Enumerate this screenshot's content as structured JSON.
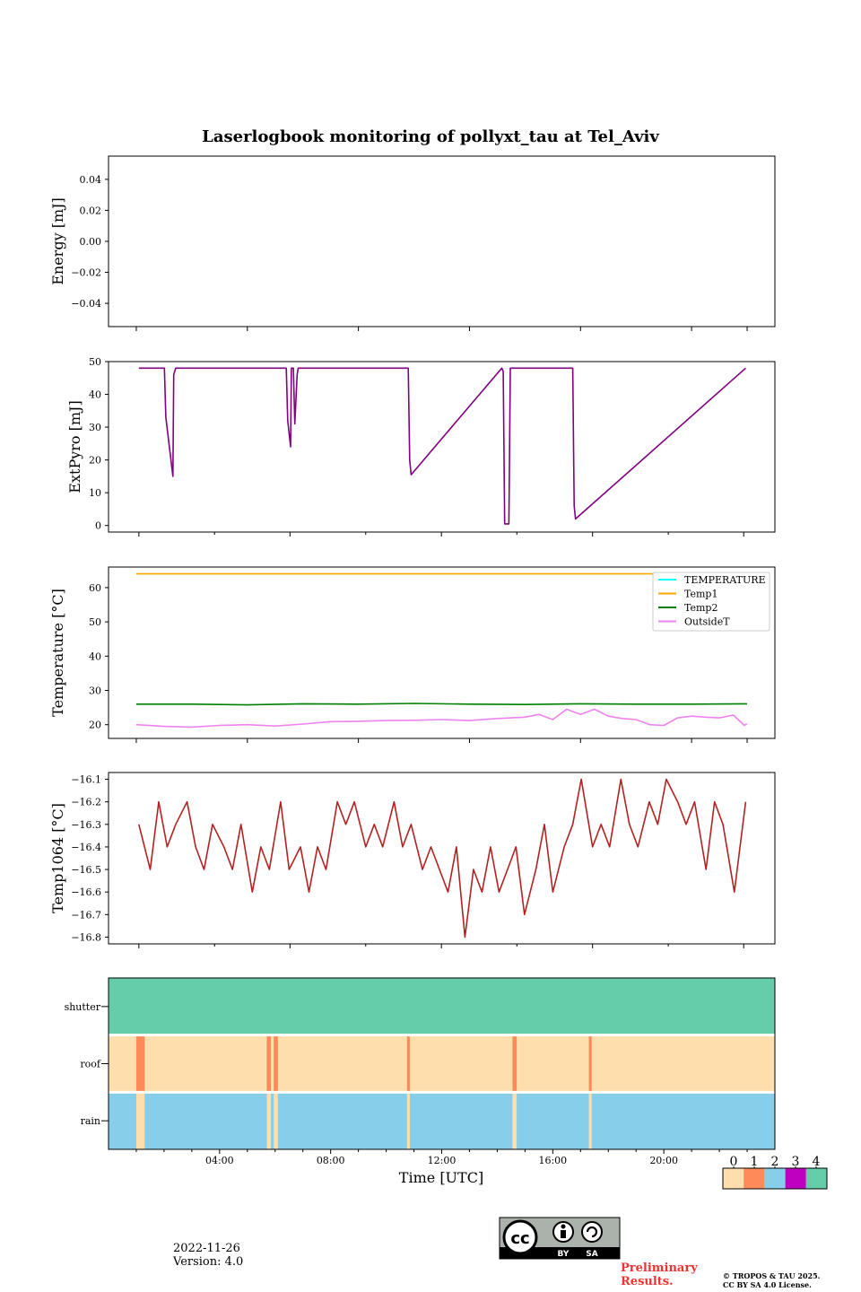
{
  "figure": {
    "title": "Laserlogbook monitoring of pollyxt_tau at Tel_Aviv",
    "date": "2022-11-26",
    "version": "Version: 4.0",
    "preliminary": [
      "Preliminary",
      "Results."
    ],
    "copyright": [
      "© TROPOS & TAU 2025.",
      "CC BY SA 4.0 License."
    ],
    "license_badge": {
      "by": "BY",
      "sa": "SA"
    },
    "xlabel": "Time [UTC]",
    "xlim_hours": [
      0,
      24
    ],
    "x_ticks": [
      {
        "hour": 4,
        "label": "04:00"
      },
      {
        "hour": 8,
        "label": "08:00"
      },
      {
        "hour": 12,
        "label": "12:00"
      },
      {
        "hour": 16,
        "label": "16:00"
      },
      {
        "hour": 20,
        "label": "20:00"
      }
    ],
    "colorbar": {
      "labels": [
        "0",
        "1",
        "2",
        "3",
        "4"
      ],
      "colors": [
        "#fddeac",
        "#fe8a5a",
        "#87ceeb",
        "#c000c0",
        "#66cdaa"
      ]
    }
  },
  "chart_data": [
    {
      "type": "line",
      "ylabel": "Energy [mJ]",
      "ylim": [
        -0.055,
        0.055
      ],
      "yticks": [
        0.04,
        0.02,
        0.0,
        -0.02,
        -0.04
      ],
      "ytick_labels": [
        "0.04",
        "0.02",
        "0.00",
        "−0.02",
        "−0.04"
      ],
      "series": []
    },
    {
      "type": "line",
      "ylabel": "ExtPyro [mJ]",
      "ylim": [
        -2,
        50
      ],
      "yticks": [
        0,
        10,
        20,
        30,
        40,
        50
      ],
      "ytick_labels": [
        "0",
        "10",
        "20",
        "30",
        "40",
        "50"
      ],
      "xlim_hours": [
        -1.07,
        22.43
      ],
      "tick_hours": [
        0,
        2.67,
        5.33,
        8.0,
        10.67,
        13.33,
        16.0,
        18.67,
        21.33
      ],
      "series": [
        {
          "color": "#800080",
          "x": [
            0,
            0.9,
            0.95,
            1.2,
            1.23,
            1.3,
            5.2,
            5.25,
            5.35,
            5.38,
            5.45,
            5.5,
            5.58,
            5.62,
            9.5,
            9.55,
            9.6,
            12.8,
            12.85,
            12.9,
            13.05,
            13.1,
            15.3,
            15.35,
            15.4,
            21.4
          ],
          "y": [
            48,
            48,
            33,
            15,
            46,
            48,
            48,
            32,
            24,
            48,
            48,
            31,
            46,
            48,
            48,
            20,
            15.5,
            48,
            47,
            0.5,
            0.5,
            48,
            48,
            6,
            2,
            48
          ]
        }
      ]
    },
    {
      "type": "line",
      "ylabel": "Temperature [°C]",
      "ylim": [
        16,
        66
      ],
      "yticks": [
        20,
        30,
        40,
        50,
        60
      ],
      "ytick_labels": [
        "20",
        "30",
        "40",
        "50",
        "60"
      ],
      "legend_position": "upper right",
      "series": [
        {
          "name": "TEMPERATURE",
          "color": "#00ffff",
          "x": [],
          "y": []
        },
        {
          "name": "Temp1",
          "color": "#ffa500",
          "x": [
            1,
            23
          ],
          "y": [
            64,
            64
          ]
        },
        {
          "name": "Temp2",
          "color": "#008000",
          "x": [
            1,
            3,
            5,
            7,
            9,
            11,
            13,
            15,
            17,
            19,
            21,
            23
          ],
          "y": [
            26,
            26,
            25.8,
            26.1,
            26,
            26.2,
            26,
            25.9,
            26.1,
            26,
            26,
            26.1
          ]
        },
        {
          "name": "OutsideT",
          "color": "#ee82ee",
          "x": [
            1,
            2,
            3,
            4,
            5,
            6,
            7,
            8,
            9,
            10,
            11,
            12,
            13,
            14,
            15,
            15.5,
            16,
            16.5,
            17,
            17.5,
            18,
            18.5,
            19,
            19.5,
            20,
            20.5,
            21,
            21.5,
            22,
            22.5,
            22.9,
            23
          ],
          "y": [
            20,
            19.5,
            19.3,
            19.8,
            20,
            19.6,
            20.2,
            20.9,
            21,
            21.2,
            21.3,
            21.5,
            21.2,
            21.8,
            22.2,
            23,
            21.5,
            24.5,
            23,
            24.5,
            22.5,
            21.8,
            21.5,
            20,
            19.8,
            22,
            22.5,
            22.2,
            22,
            22.8,
            19.8,
            20.3
          ]
        }
      ]
    },
    {
      "type": "line",
      "ylabel": "Temp1064 [°C]",
      "ylim": [
        -16.83,
        -16.07
      ],
      "yticks": [
        -16.1,
        -16.2,
        -16.3,
        -16.4,
        -16.5,
        -16.6,
        -16.7,
        -16.8
      ],
      "ytick_labels": [
        "−16.1",
        "−16.2",
        "−16.3",
        "−16.4",
        "−16.5",
        "−16.6",
        "−16.7",
        "−16.8"
      ],
      "xlim_hours": [
        -1.07,
        22.43
      ],
      "tick_hours": [
        0,
        2.67,
        5.33,
        8.0,
        10.67,
        13.33,
        16.0,
        18.67,
        21.33
      ],
      "series": [
        {
          "color": "#b22222",
          "x": [
            0,
            0.4,
            0.7,
            1.0,
            1.3,
            1.7,
            2.0,
            2.3,
            2.6,
            3.0,
            3.3,
            3.6,
            4.0,
            4.3,
            4.6,
            5.0,
            5.3,
            5.7,
            6.0,
            6.3,
            6.6,
            7.0,
            7.3,
            7.6,
            8.0,
            8.3,
            8.6,
            9.0,
            9.3,
            9.6,
            10.0,
            10.3,
            10.6,
            10.9,
            11.2,
            11.5,
            11.8,
            12.1,
            12.4,
            12.7,
            13.0,
            13.3,
            13.6,
            14.0,
            14.3,
            14.6,
            15.0,
            15.3,
            15.6,
            16.0,
            16.3,
            16.6,
            17.0,
            17.3,
            17.6,
            18.0,
            18.3,
            18.6,
            19.0,
            19.3,
            19.6,
            20.0,
            20.3,
            20.6,
            21.0,
            21.4
          ],
          "y": [
            -16.3,
            -16.5,
            -16.2,
            -16.4,
            -16.3,
            -16.2,
            -16.4,
            -16.5,
            -16.3,
            -16.4,
            -16.5,
            -16.3,
            -16.6,
            -16.4,
            -16.5,
            -16.2,
            -16.5,
            -16.4,
            -16.6,
            -16.4,
            -16.5,
            -16.2,
            -16.3,
            -16.2,
            -16.4,
            -16.3,
            -16.4,
            -16.2,
            -16.4,
            -16.3,
            -16.5,
            -16.4,
            -16.5,
            -16.6,
            -16.4,
            -16.8,
            -16.5,
            -16.6,
            -16.4,
            -16.6,
            -16.5,
            -16.4,
            -16.7,
            -16.5,
            -16.3,
            -16.6,
            -16.4,
            -16.3,
            -16.1,
            -16.4,
            -16.3,
            -16.4,
            -16.1,
            -16.3,
            -16.4,
            -16.2,
            -16.3,
            -16.1,
            -16.2,
            -16.3,
            -16.2,
            -16.5,
            -16.2,
            -16.3,
            -16.6,
            -16.2
          ]
        }
      ]
    },
    {
      "type": "heatmap",
      "rows": [
        "shutter",
        "roof",
        "rain"
      ],
      "xlim_hours": [
        0,
        24
      ],
      "base_values": {
        "shutter": 4,
        "roof": 0,
        "rain": 2
      },
      "events": {
        "roof": [
          {
            "start": 1.0,
            "end": 1.3,
            "value": 1
          },
          {
            "start": 5.7,
            "end": 5.85,
            "value": 1
          },
          {
            "start": 5.95,
            "end": 6.1,
            "value": 1
          },
          {
            "start": 10.75,
            "end": 10.85,
            "value": 1
          },
          {
            "start": 14.55,
            "end": 14.7,
            "value": 1
          },
          {
            "start": 17.3,
            "end": 17.4,
            "value": 1
          }
        ],
        "rain": [
          {
            "start": 1.0,
            "end": 1.3,
            "value": 0
          },
          {
            "start": 5.7,
            "end": 5.85,
            "value": 0
          },
          {
            "start": 5.95,
            "end": 6.1,
            "value": 0
          },
          {
            "start": 10.75,
            "end": 10.85,
            "value": 0
          },
          {
            "start": 14.55,
            "end": 14.7,
            "value": 0
          },
          {
            "start": 17.3,
            "end": 17.4,
            "value": 0
          }
        ]
      }
    }
  ]
}
